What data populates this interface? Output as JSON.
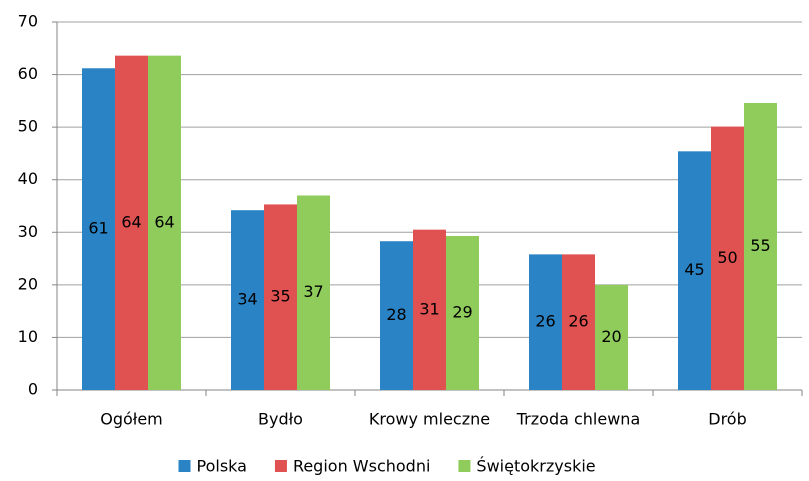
{
  "chart_data": {
    "type": "bar",
    "categories": [
      "Ogółem",
      "Bydło",
      "Krowy mleczne",
      "Trzoda chlewna",
      "Drób"
    ],
    "series": [
      {
        "name": "Polska",
        "color": "#2a83c5",
        "values": [
          61.2,
          34.2,
          28.3,
          25.8,
          45.4
        ],
        "value_labels": [
          "61",
          "34",
          "28",
          "26",
          "45"
        ]
      },
      {
        "name": "Region Wschodni",
        "color": "#e05252",
        "values": [
          63.6,
          35.3,
          30.5,
          25.8,
          50.1
        ],
        "value_labels": [
          "64",
          "35",
          "31",
          "26",
          "50"
        ]
      },
      {
        "name": "Świętokrzyskie",
        "color": "#8fcc5c",
        "values": [
          63.6,
          37.0,
          29.3,
          20.0,
          54.6
        ],
        "value_labels": [
          "64",
          "37",
          "29",
          "20",
          "55"
        ]
      }
    ],
    "ylim": [
      0,
      70
    ],
    "yticks": [
      0,
      10,
      20,
      30,
      40,
      50,
      60,
      70
    ],
    "grid": true,
    "legend": "bottom"
  }
}
